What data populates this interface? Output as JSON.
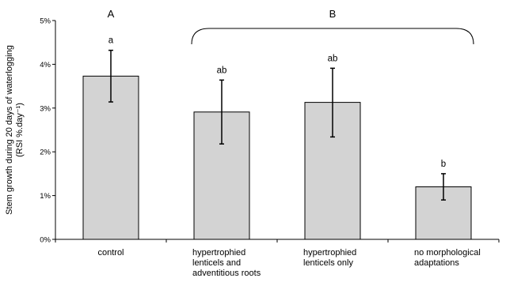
{
  "chart_data": {
    "type": "bar",
    "categories": [
      [
        "control"
      ],
      [
        "hypertrophied",
        "lenticels and",
        "adventitious roots"
      ],
      [
        "hypertrophied",
        "lenticels only"
      ],
      [
        "no morphological",
        "adaptations"
      ]
    ],
    "values": [
      3.73,
      2.91,
      3.13,
      1.2
    ],
    "error_low": [
      3.14,
      2.18,
      2.34,
      0.9
    ],
    "error_high": [
      4.32,
      3.64,
      3.91,
      1.5
    ],
    "significance_letters": [
      "a",
      "ab",
      "ab",
      "b"
    ],
    "groups": [
      {
        "label": "A",
        "categories": [
          0
        ]
      },
      {
        "label": "B",
        "categories": [
          1,
          2,
          3
        ]
      }
    ],
    "ylabel": [
      "Stem growth during 20 days of waterlogging",
      "(RSI %.day⁻¹)"
    ],
    "ylim": [
      0,
      5
    ],
    "yticks": [
      0,
      1,
      2,
      3,
      4,
      5
    ],
    "ytick_labels": [
      "0%",
      "1%",
      "2%",
      "3%",
      "4%",
      "5%"
    ],
    "grid": false,
    "bar_color": "#d3d3d3",
    "bar_edge_color": "#000000"
  }
}
